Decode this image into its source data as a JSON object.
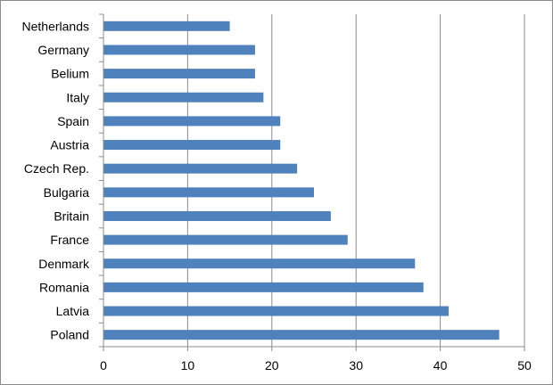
{
  "chart_data": {
    "type": "bar",
    "orientation": "horizontal",
    "title": "",
    "xlabel": "",
    "ylabel": "",
    "categories": [
      "Netherlands",
      "Germany",
      "Belium",
      "Italy",
      "Spain",
      "Austria",
      "Czech Rep.",
      "Bulgaria",
      "Britain",
      "France",
      "Denmark",
      "Romania",
      "Latvia",
      "Poland"
    ],
    "values": [
      15,
      18,
      18,
      19,
      21,
      21,
      23,
      25,
      27,
      29,
      37,
      38,
      41,
      47
    ],
    "xlim": [
      0,
      50
    ],
    "xticks": [
      0,
      10,
      20,
      30,
      40,
      50
    ],
    "grid": "vertical",
    "legend": "none",
    "bar_color": "#4f81bd",
    "grid_color": "#8c8c8c"
  }
}
